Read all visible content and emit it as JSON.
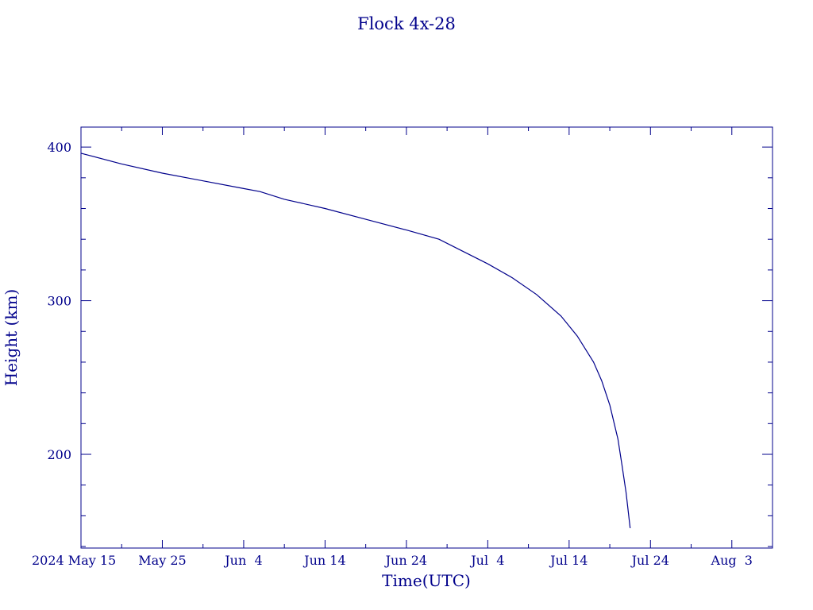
{
  "chart_data": {
    "type": "line",
    "title": "Flock 4x-28",
    "xlabel": "Time(UTC)",
    "ylabel": "Height (km)",
    "x_tick_labels": [
      "2024 May 15",
      "May 25",
      "Jun  4",
      "Jun 14",
      "Jun 24",
      "Jul  4",
      "Jul 14",
      "Jul 24",
      "Aug  3"
    ],
    "y_tick_labels": [
      "200",
      "300",
      "400"
    ],
    "xlim": [
      "2024-05-15",
      "2024-08-08"
    ],
    "ylim": [
      139,
      413
    ],
    "series": [
      {
        "x": [
          "2024-05-15",
          "2024-05-20",
          "2024-05-25",
          "2024-05-30",
          "2024-06-04",
          "2024-06-06",
          "2024-06-09",
          "2024-06-14",
          "2024-06-19",
          "2024-06-24",
          "2024-06-28",
          "2024-07-01",
          "2024-07-04",
          "2024-07-07",
          "2024-07-10",
          "2024-07-13",
          "2024-07-15",
          "2024-07-17",
          "2024-07-18",
          "2024-07-19",
          "2024-07-20",
          "2024-07-20T12:00",
          "2024-07-21",
          "2024-07-21T12:00"
        ],
        "y": [
          396,
          389,
          383,
          378,
          373,
          371,
          366,
          360,
          353,
          346,
          340,
          332,
          324,
          315,
          304,
          290,
          277,
          260,
          248,
          232,
          210,
          193,
          175,
          152
        ]
      }
    ],
    "grid": false
  },
  "colors": {
    "axis": "#00008b",
    "line": "#00008b",
    "background": "#ffffff"
  }
}
